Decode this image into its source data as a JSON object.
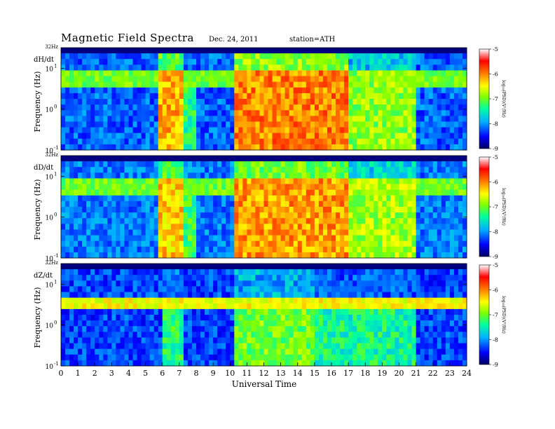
{
  "header": {
    "title": "Magnetic Field Spectra",
    "date": "Dec. 24, 2011",
    "station": "station=ATH"
  },
  "chart_data": {
    "type": "heatmap",
    "xlabel": "Universal Time",
    "x_ticks": [
      "0",
      "1",
      "2",
      "3",
      "4",
      "5",
      "6",
      "7",
      "8",
      "9",
      "10",
      "11",
      "12",
      "13",
      "14",
      "15",
      "16",
      "17",
      "18",
      "19",
      "20",
      "21",
      "22",
      "23",
      "24"
    ],
    "xlim": [
      0,
      24
    ],
    "ylabel": "Frequency (Hz)",
    "y_scale": "log",
    "ylim_hz": [
      0.1,
      32
    ],
    "y_top_label": "32Hz",
    "y_tick_base": "10",
    "y_tick_exponents": [
      "1",
      "0",
      "-1"
    ],
    "colorbar": {
      "label": "log₁₀(PSD)(V²/Hz)",
      "range": [
        -9,
        -5
      ],
      "ticks": [
        "-5",
        "-6",
        "-7",
        "-8",
        "-9"
      ],
      "colors": [
        "#000060",
        "#0000ff",
        "#00b0ff",
        "#00ffa0",
        "#80ff00",
        "#ffff00",
        "#ff8000",
        "#ff0000",
        "#ffffff"
      ]
    },
    "panels": [
      {
        "name": "dH/dt",
        "background_level": -8.2,
        "band_hz": [
          3.0,
          8.0
        ],
        "band_level": -7.0,
        "activity_intervals": [
          {
            "start": 5.8,
            "end": 7.2,
            "level": -6.2
          },
          {
            "start": 7.3,
            "end": 8.0,
            "level": -7.3
          },
          {
            "start": 10.3,
            "end": 17.1,
            "level": -6.0
          },
          {
            "start": 17.1,
            "end": 21.0,
            "level": -6.9
          }
        ]
      },
      {
        "name": "dD/dt",
        "background_level": -8.1,
        "band_hz": [
          3.0,
          8.0
        ],
        "band_level": -7.0,
        "activity_intervals": [
          {
            "start": 5.8,
            "end": 7.2,
            "level": -6.3
          },
          {
            "start": 7.3,
            "end": 8.0,
            "level": -7.2
          },
          {
            "start": 10.3,
            "end": 17.1,
            "level": -6.1
          },
          {
            "start": 17.1,
            "end": 21.0,
            "level": -6.8
          }
        ]
      },
      {
        "name": "dZ/dt",
        "background_level": -8.3,
        "band_hz": [
          2.5,
          4.0
        ],
        "band_level": -6.5,
        "activity_intervals": [
          {
            "start": 5.9,
            "end": 7.2,
            "level": -7.3
          },
          {
            "start": 10.3,
            "end": 15.1,
            "level": -7.0
          },
          {
            "start": 15.1,
            "end": 21.0,
            "level": -7.4
          }
        ]
      }
    ]
  }
}
